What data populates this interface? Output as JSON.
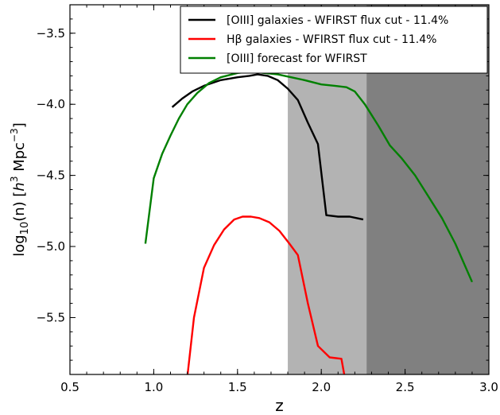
{
  "chart_data": {
    "type": "line",
    "xlabel": "z",
    "ylabel": "log10(n) [h^3 Mpc^-3]",
    "ylabel_parts": {
      "main": "log",
      "sub": "10",
      "arg": "(n) [",
      "h": "h",
      "h_exp": "3",
      "unit": " Mpc",
      "unit_exp": "−3",
      "close": "]"
    },
    "xlim": [
      0.5,
      3.0
    ],
    "ylim": [
      -5.9,
      -3.3
    ],
    "x_ticks": [
      0.5,
      1.0,
      1.5,
      2.0,
      2.5,
      3.0
    ],
    "x_tick_labels": [
      "0.5",
      "1.0",
      "1.5",
      "2.0",
      "2.5",
      "3.0"
    ],
    "y_ticks": [
      -3.5,
      -4.0,
      -4.5,
      -5.0,
      -5.5
    ],
    "y_tick_labels": [
      "−3.5",
      "−4.0",
      "−4.5",
      "−5.0",
      "−5.5"
    ],
    "grid": false,
    "legend_position": "top-right",
    "shaded_regions": [
      {
        "x0": 1.8,
        "x1": 2.27,
        "color": "#b3b3b3"
      },
      {
        "x0": 2.27,
        "x1": 3.0,
        "color": "#808080"
      }
    ],
    "series": [
      {
        "name": "[OIII] galaxies - WFIRST flux cut - 11.4%",
        "color": "#000000",
        "x": [
          1.11,
          1.17,
          1.23,
          1.3,
          1.4,
          1.5,
          1.57,
          1.62,
          1.68,
          1.74,
          1.8,
          1.86,
          1.92,
          1.98,
          2.03,
          2.1,
          2.17,
          2.25
        ],
        "y": [
          -4.02,
          -3.96,
          -3.91,
          -3.87,
          -3.83,
          -3.81,
          -3.8,
          -3.79,
          -3.8,
          -3.83,
          -3.89,
          -3.97,
          -4.13,
          -4.28,
          -4.78,
          -4.79,
          -4.79,
          -4.81
        ]
      },
      {
        "name": "Hβ galaxies - WFIRST flux cut - 11.4%",
        "color": "#ff0000",
        "x": [
          1.2,
          1.24,
          1.3,
          1.36,
          1.42,
          1.48,
          1.53,
          1.58,
          1.63,
          1.69,
          1.75,
          1.81,
          1.86,
          1.92,
          1.98,
          2.05,
          2.12,
          2.14
        ],
        "y": [
          -5.92,
          -5.5,
          -5.15,
          -4.99,
          -4.88,
          -4.81,
          -4.79,
          -4.79,
          -4.8,
          -4.83,
          -4.89,
          -4.98,
          -5.06,
          -5.4,
          -5.7,
          -5.78,
          -5.79,
          -5.92
        ]
      },
      {
        "name": "[OIII] forecast for  WFIRST",
        "color": "#008000",
        "x": [
          0.95,
          1.0,
          1.05,
          1.1,
          1.15,
          1.2,
          1.26,
          1.33,
          1.4,
          1.5,
          1.58,
          1.66,
          1.74,
          1.82,
          1.9,
          2.0,
          2.08,
          2.15,
          2.2,
          2.26,
          2.34,
          2.41,
          2.48,
          2.56,
          2.64,
          2.72,
          2.8,
          2.9
        ],
        "y": [
          -4.98,
          -4.52,
          -4.35,
          -4.22,
          -4.1,
          -4.0,
          -3.92,
          -3.85,
          -3.81,
          -3.78,
          -3.77,
          -3.78,
          -3.79,
          -3.81,
          -3.83,
          -3.86,
          -3.87,
          -3.88,
          -3.91,
          -4.0,
          -4.15,
          -4.29,
          -4.38,
          -4.5,
          -4.65,
          -4.8,
          -4.98,
          -5.25
        ]
      }
    ]
  }
}
